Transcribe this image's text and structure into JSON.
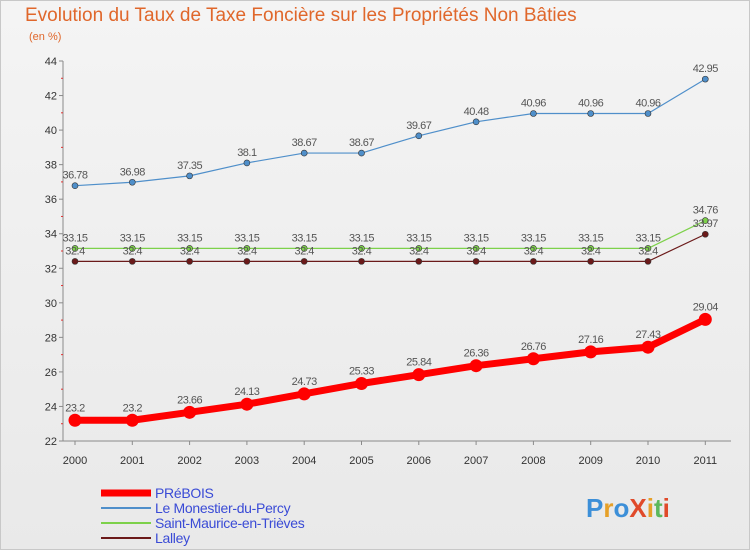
{
  "chart_data": {
    "type": "line",
    "title": "Evolution du Taux de Taxe Foncière sur les Propriétés Non Bâties",
    "ylabel": "(en %)",
    "xlabel": "",
    "categories": [
      "2000",
      "2001",
      "2002",
      "2003",
      "2004",
      "2005",
      "2006",
      "2007",
      "2008",
      "2009",
      "2010",
      "2011"
    ],
    "yticks": [
      22,
      24,
      26,
      28,
      30,
      32,
      34,
      36,
      38,
      40,
      42,
      44
    ],
    "ylim": [
      22,
      44
    ],
    "series": [
      {
        "name": "PRéBOIS",
        "color": "#ff0000",
        "values": [
          23.2,
          23.2,
          23.66,
          24.13,
          24.73,
          25.33,
          25.84,
          26.36,
          26.76,
          27.16,
          27.43,
          29.04
        ],
        "labels": [
          "23.2",
          "23.2",
          "23.66",
          "24.13",
          "24.73",
          "25.33",
          "25.84",
          "26.36",
          "26.76",
          "27.16",
          "27.43",
          "29.04"
        ]
      },
      {
        "name": "Le Monestier-du-Percy",
        "color": "#4f8fca",
        "values": [
          36.78,
          36.98,
          37.35,
          38.1,
          38.67,
          38.67,
          39.67,
          40.48,
          40.96,
          40.96,
          40.96,
          42.95
        ],
        "labels": [
          "36.78",
          "36.98",
          "37.35",
          "38.1",
          "38.67",
          "38.67",
          "39.67",
          "40.48",
          "40.96",
          "40.96",
          "40.96",
          "42.95"
        ]
      },
      {
        "name": "Saint-Maurice-en-Trièves",
        "color": "#7dd14a",
        "values": [
          33.15,
          33.15,
          33.15,
          33.15,
          33.15,
          33.15,
          33.15,
          33.15,
          33.15,
          33.15,
          33.15,
          34.76
        ],
        "labels": [
          "33.15",
          "33.15",
          "33.15",
          "33.15",
          "33.15",
          "33.15",
          "33.15",
          "33.15",
          "33.15",
          "33.15",
          "33.15",
          "34.76"
        ]
      },
      {
        "name": "Lalley",
        "color": "#6b1a1a",
        "values": [
          32.4,
          32.4,
          32.4,
          32.4,
          32.4,
          32.4,
          32.4,
          32.4,
          32.4,
          32.4,
          32.4,
          33.97
        ],
        "labels": [
          "32.4",
          "32.4",
          "32.4",
          "32.4",
          "32.4",
          "32.4",
          "32.4",
          "32.4",
          "32.4",
          "32.4",
          "32.4",
          "33.97"
        ]
      }
    ],
    "legend": {
      "position": "bottom-left"
    },
    "grid": false
  },
  "logo": {
    "text": "ProXiti"
  },
  "colors": {
    "title": "#e0672b",
    "legend_text": "#3a4bd6",
    "axis": "#8a8a8a"
  }
}
